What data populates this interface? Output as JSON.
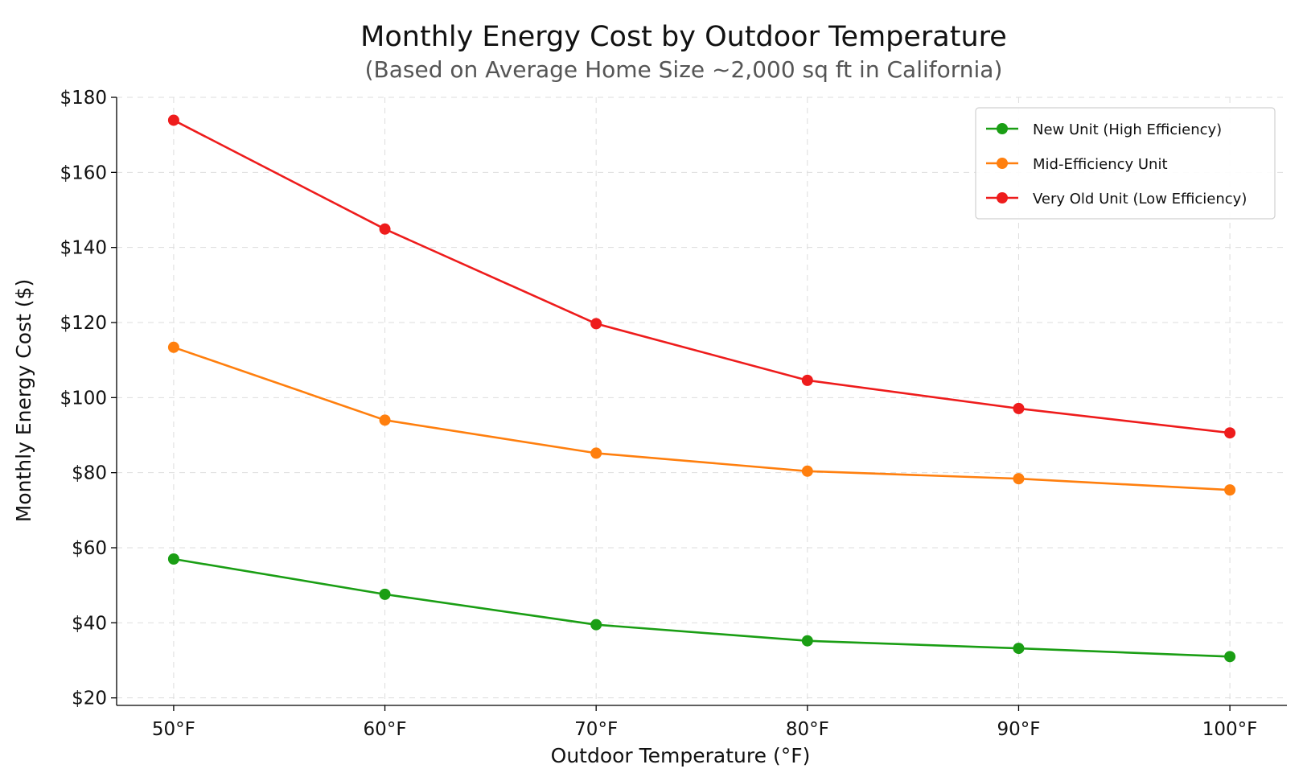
{
  "chart_data": {
    "type": "line",
    "title": "Monthly Energy Cost by Outdoor Temperature",
    "subtitle": "(Based on Average Home Size ~2,000 sq ft in California)",
    "xlabel": "Outdoor Temperature (°F)",
    "ylabel": "Monthly Energy Cost ($)",
    "categories": [
      "50°F",
      "60°F",
      "70°F",
      "80°F",
      "90°F",
      "100°F"
    ],
    "x": [
      50,
      60,
      70,
      80,
      90,
      100
    ],
    "xlim": [
      47.3,
      102.7
    ],
    "ylim": [
      18,
      180
    ],
    "y_ticks": [
      20,
      40,
      60,
      80,
      100,
      120,
      140,
      160,
      180
    ],
    "y_tick_labels": [
      "$20",
      "$40",
      "$60",
      "$80",
      "$100",
      "$120",
      "$140",
      "$160",
      "$180"
    ],
    "grid": true,
    "legend_position": "top-right",
    "series": [
      {
        "name": "New Unit (High Efficiency)",
        "color": "#1a9e14",
        "values": [
          57.0,
          47.6,
          39.5,
          35.2,
          33.2,
          31.0
        ]
      },
      {
        "name": "Mid-Efficiency Unit",
        "color": "#ff7f0e",
        "values": [
          113.4,
          94.0,
          85.2,
          80.4,
          78.4,
          75.4
        ]
      },
      {
        "name": "Very Old Unit (Low Efficiency)",
        "color": "#ee1c1c",
        "values": [
          173.9,
          144.9,
          119.7,
          104.6,
          97.1,
          90.6
        ]
      }
    ]
  }
}
